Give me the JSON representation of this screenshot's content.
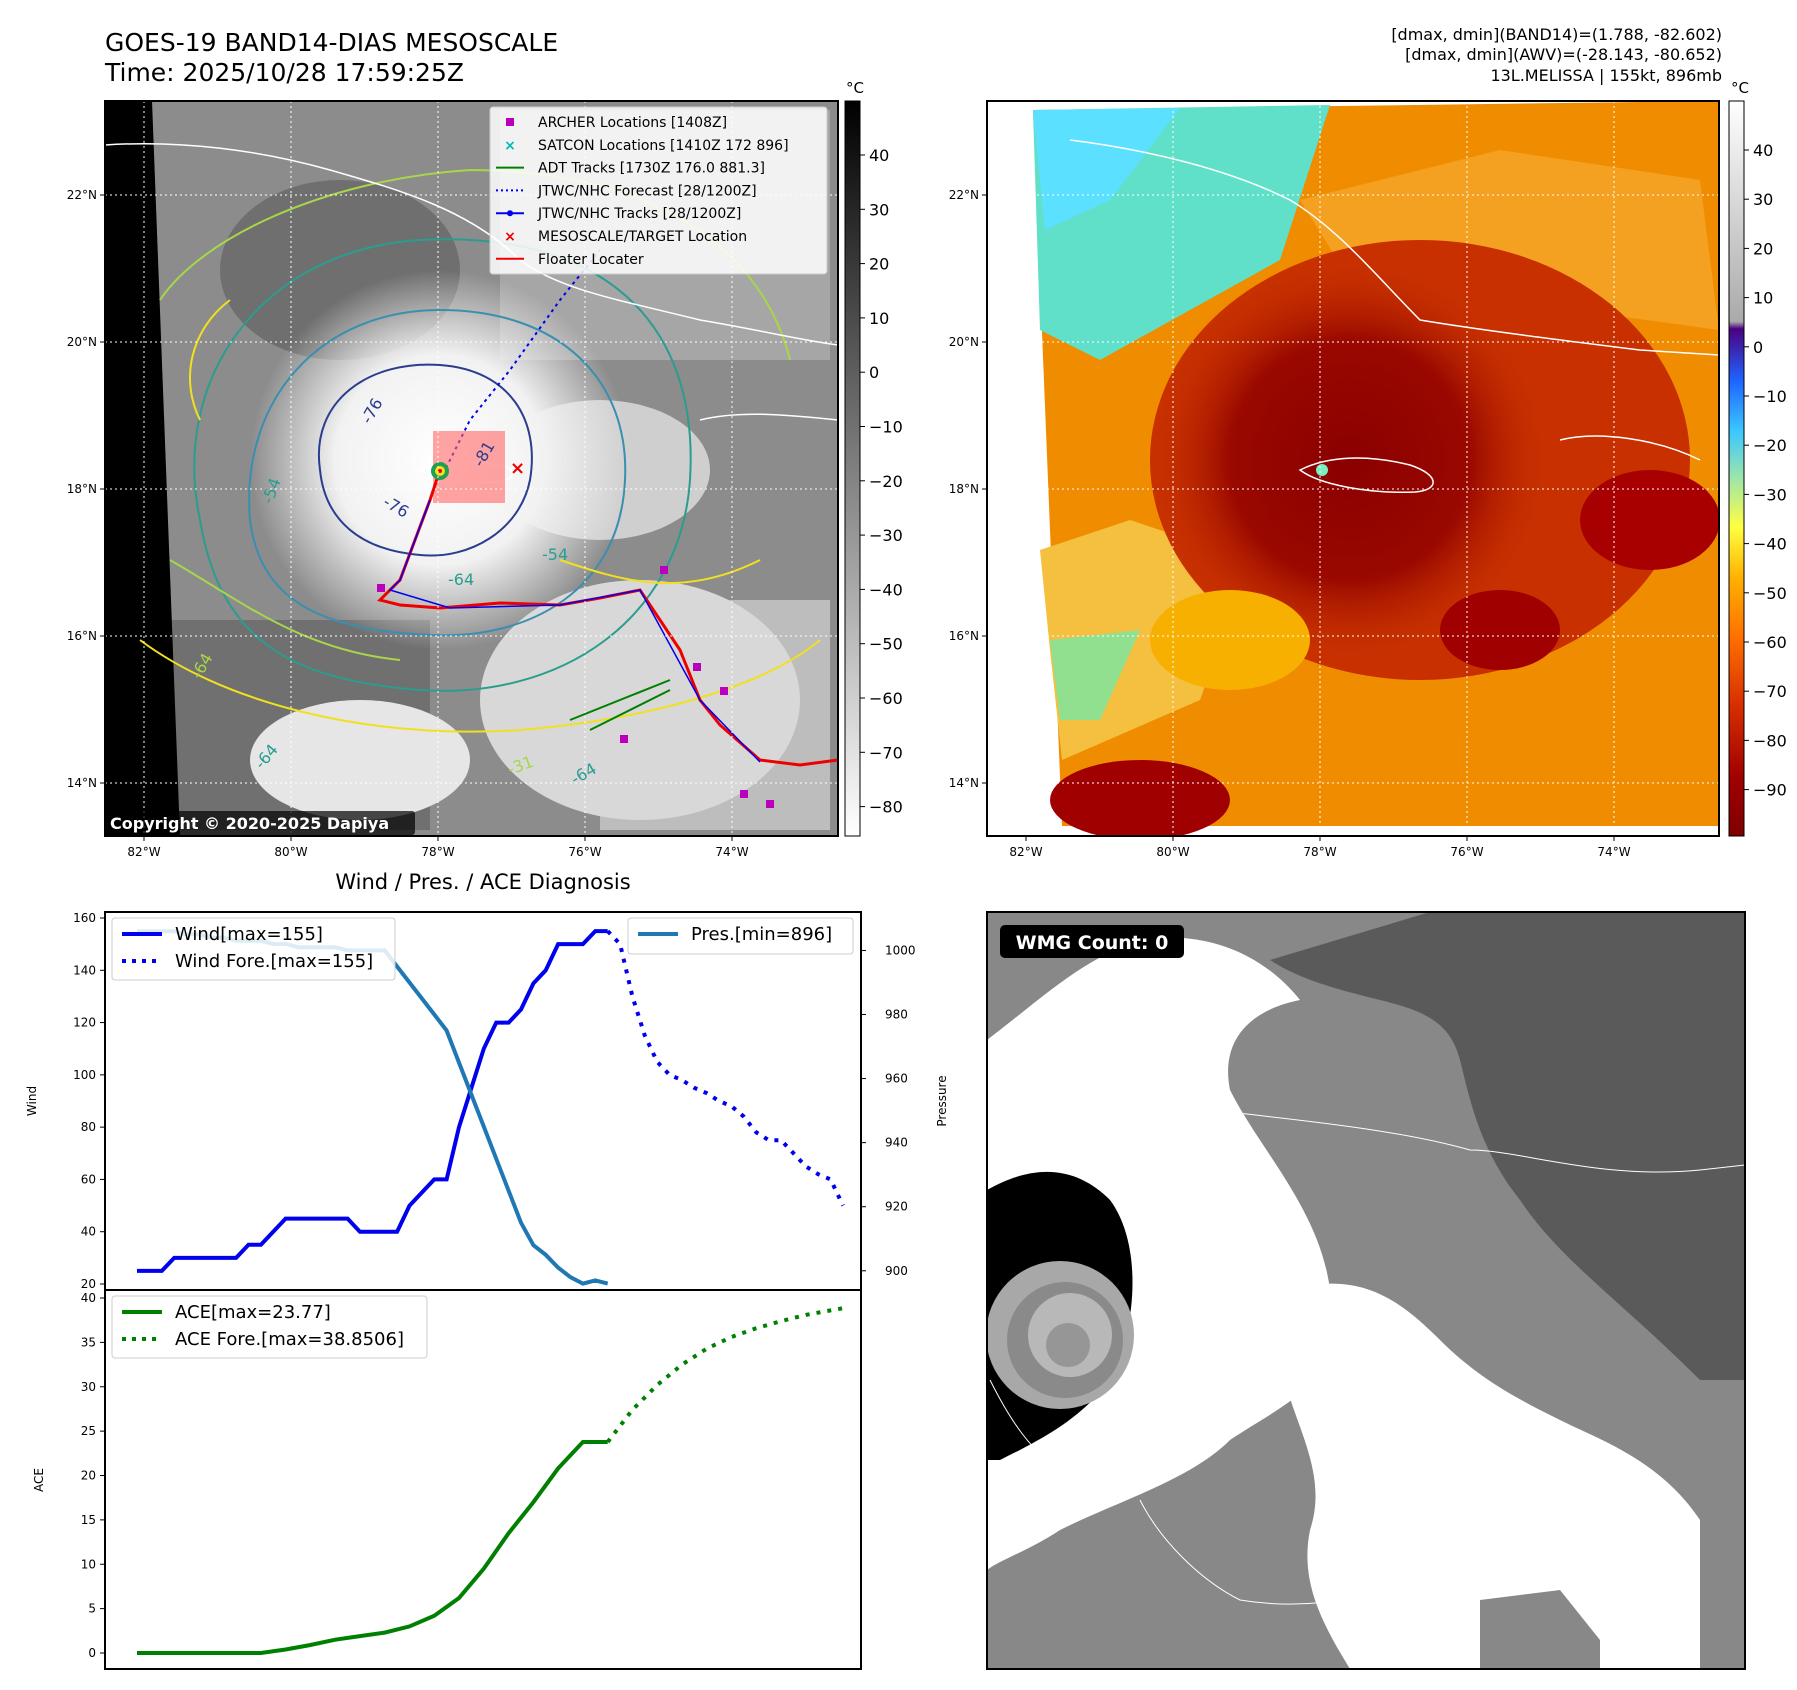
{
  "header": {
    "title_line1": "GOES-19 BAND14-DIAS MESOSCALE",
    "title_line2": "Time: 2025/10/28 17:59:25Z",
    "stats_line1": "[dmax, dmin](BAND14)=(1.788, -82.602)",
    "stats_line2": "[dmax, dmin](AWV)=(-28.143, -80.652)",
    "stats_line3": "13L.MELISSA | 155kt, 896mb"
  },
  "colors": {
    "wind": "#0000ee",
    "pressure": "#1f77b4",
    "ace": "#008000",
    "track_red": "#ee0000",
    "archer": "#bb00bb",
    "satcon": "#00bbbb",
    "adt": "#008000"
  },
  "map_axes": {
    "lon_ticks": [
      "82°W",
      "80°W",
      "78°W",
      "76°W",
      "74°W"
    ],
    "lat_ticks": [
      "22°N",
      "20°N",
      "18°N",
      "16°N",
      "14°N"
    ]
  },
  "ir_panel": {
    "legend": [
      {
        "label": "ARCHER Locations [1408Z]",
        "marker": "square",
        "color": "#bb00bb"
      },
      {
        "label": "SATCON Locations [1410Z 172 896]",
        "marker": "x",
        "color": "#00bbbb"
      },
      {
        "label": "ADT Tracks [1730Z 176.0 881.3]",
        "marker": "line",
        "color": "#008000"
      },
      {
        "label": "JTWC/NHC Forecast [28/1200Z]",
        "marker": "dotted",
        "color": "#0000ee"
      },
      {
        "label": "JTWC/NHC Tracks [28/1200Z]",
        "marker": "line-dot",
        "color": "#0000ee"
      },
      {
        "label": "MESOSCALE/TARGET Location",
        "marker": "x",
        "color": "#ee0000"
      },
      {
        "label": "Floater Locater",
        "marker": "line",
        "color": "#ee0000"
      }
    ],
    "contour_labels": [
      "-76",
      "-76",
      "-81",
      "-64",
      "-54",
      "-54",
      "-64",
      "-31",
      "-64",
      "-64"
    ],
    "copyright": "Copyright © 2020-2025 Dapiya",
    "colorbar": {
      "unit": "°C",
      "ticks": [
        "40",
        "30",
        "20",
        "10",
        "0",
        "−10",
        "−20",
        "−30",
        "−40",
        "−50",
        "−60",
        "−70",
        "−80"
      ]
    }
  },
  "awv_panel": {
    "colorbar": {
      "unit": "°C",
      "ticks": [
        "40",
        "30",
        "20",
        "10",
        "0",
        "−10",
        "−20",
        "−30",
        "−40",
        "−50",
        "−60",
        "−70",
        "−80",
        "−90"
      ]
    }
  },
  "wmg_panel": {
    "label": "WMG Count: 0"
  },
  "chart_data": [
    {
      "type": "line",
      "title": "Wind / Pres. / ACE Diagnosis",
      "ylabel": "Wind",
      "ylabel_right": "Pressure",
      "ylim": [
        20,
        160
      ],
      "ylim_right": [
        894,
        1012
      ],
      "yticks": [
        "160",
        "140",
        "120",
        "100",
        "80",
        "60",
        "40",
        "20"
      ],
      "yticks_right": [
        "1000",
        "980",
        "960",
        "940",
        "920",
        "900"
      ],
      "series": [
        {
          "name": "Wind[max=155]",
          "style": "solid",
          "x": [
            0,
            1,
            2,
            3,
            4,
            5,
            6,
            7,
            8,
            9,
            10,
            11,
            12,
            13,
            14,
            15,
            16,
            17,
            18,
            19,
            20,
            21,
            22,
            23,
            24,
            25,
            26,
            27,
            28,
            29,
            30,
            31,
            32,
            33,
            34,
            35,
            36,
            37,
            38
          ],
          "values": [
            25,
            25,
            25,
            30,
            30,
            30,
            30,
            30,
            30,
            35,
            35,
            40,
            45,
            45,
            45,
            45,
            45,
            45,
            40,
            40,
            40,
            40,
            50,
            55,
            60,
            60,
            80,
            95,
            110,
            120,
            120,
            125,
            135,
            140,
            150,
            150,
            150,
            155,
            155
          ]
        },
        {
          "name": "Wind Fore.[max=155]",
          "style": "dotted",
          "x": [
            38,
            39,
            40,
            41,
            42,
            43,
            44,
            45,
            46,
            47,
            48,
            49,
            50,
            51,
            52,
            53,
            54,
            55,
            56,
            57
          ],
          "values": [
            155,
            150,
            130,
            115,
            105,
            100,
            98,
            95,
            93,
            90,
            88,
            84,
            78,
            75,
            75,
            70,
            65,
            62,
            60,
            50
          ]
        },
        {
          "name": "Pres.[min=896]",
          "style": "solid",
          "axis": "right",
          "x": [
            0,
            1,
            2,
            3,
            4,
            5,
            6,
            7,
            8,
            9,
            10,
            11,
            12,
            13,
            14,
            15,
            16,
            17,
            18,
            19,
            20,
            21,
            22,
            23,
            24,
            25,
            26,
            27,
            28,
            29,
            30,
            31,
            32,
            33,
            34,
            35,
            36,
            37,
            38
          ],
          "values": [
            1006,
            1006,
            1006,
            1006,
            1005,
            1005,
            1004,
            1004,
            1003,
            1003,
            1003,
            1002,
            1002,
            1001,
            1001,
            1001,
            1001,
            1000,
            1000,
            1000,
            1000,
            995,
            990,
            985,
            980,
            975,
            965,
            955,
            945,
            935,
            925,
            915,
            908,
            905,
            901,
            898,
            896,
            897,
            896
          ]
        }
      ]
    },
    {
      "type": "line",
      "ylabel": "ACE",
      "ylim": [
        -2,
        40
      ],
      "yticks": [
        "40",
        "35",
        "30",
        "25",
        "20",
        "15",
        "10",
        "5",
        "0"
      ],
      "series": [
        {
          "name": "ACE[max=23.77]",
          "style": "solid",
          "x": [
            0,
            2,
            4,
            6,
            8,
            10,
            12,
            14,
            16,
            18,
            20,
            22,
            24,
            26,
            28,
            30,
            32,
            34,
            36,
            38
          ],
          "values": [
            0,
            0,
            0,
            0,
            0,
            0,
            0.4,
            0.9,
            1.5,
            1.9,
            2.3,
            3.0,
            4.2,
            6.2,
            9.5,
            13.5,
            17.0,
            20.8,
            23.77,
            23.77
          ]
        },
        {
          "name": "ACE Fore.[max=38.8506]",
          "style": "dotted",
          "x": [
            38,
            40,
            42,
            44,
            46,
            48,
            50,
            52,
            54,
            56,
            57
          ],
          "values": [
            23.77,
            27.4,
            30.2,
            32.5,
            34.3,
            35.6,
            36.6,
            37.4,
            38.1,
            38.6,
            38.8506
          ]
        }
      ]
    }
  ]
}
